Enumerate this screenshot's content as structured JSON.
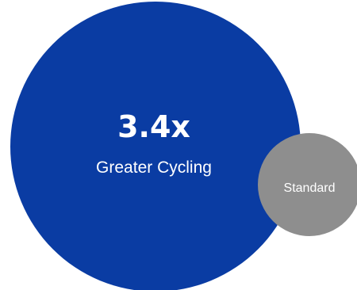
{
  "chart_data": {
    "type": "bubble",
    "title": "",
    "bubbles": [
      {
        "value_label": "3.4x",
        "label": "Greater Cycling",
        "relative_size": 3.4,
        "color": "#0a3ca3"
      },
      {
        "value_label": "",
        "label": "Standard",
        "relative_size": 1,
        "color": "#8e8e8e"
      }
    ],
    "text_color": "#ffffff"
  }
}
